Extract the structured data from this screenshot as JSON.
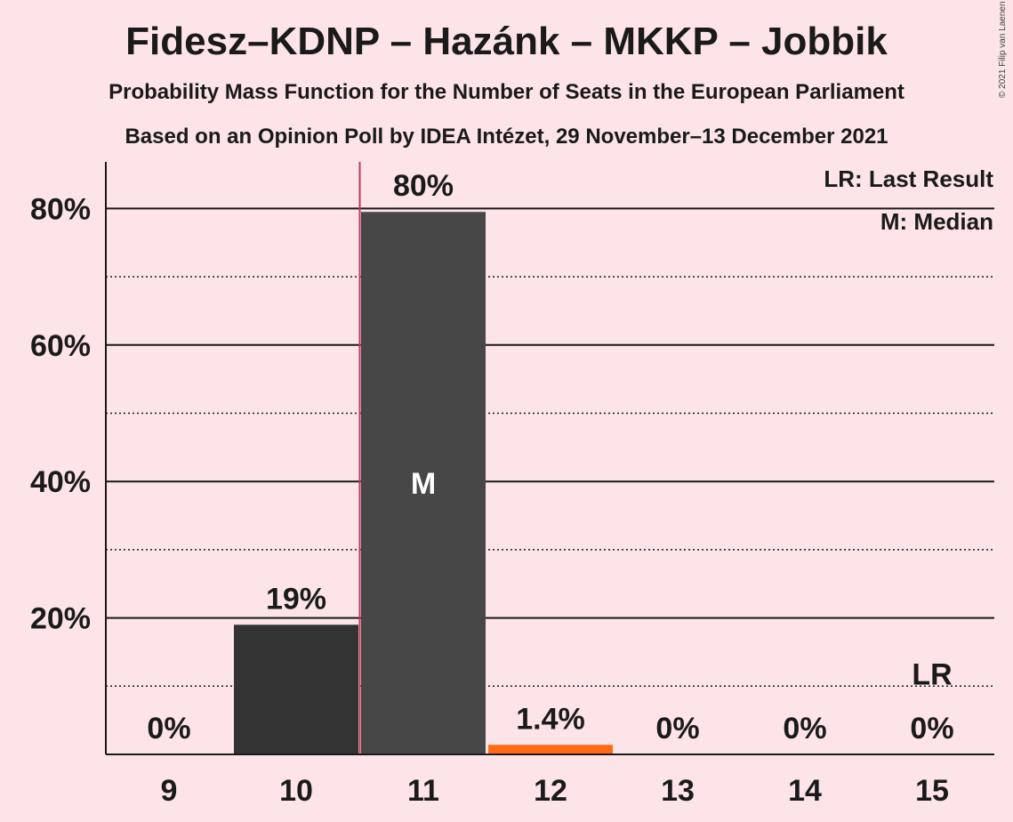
{
  "header": {
    "title": "Fidesz–KDNP – Hazánk – MKKP – Jobbik",
    "subtitle1": "Probability Mass Function for the Number of Seats in the European Parliament",
    "subtitle2": "Based on an Opinion Poll by IDEA Intézet, 29 November–13 December 2021",
    "copyright": "© 2021 Filip van Laenen"
  },
  "legend": {
    "last_result": "LR: Last Result",
    "median": "M: Median"
  },
  "colors": {
    "background": "#FCE4E8",
    "bar_dark": "#333333",
    "bar_median": "#474747",
    "bar_orange": "#FF6A13",
    "median_line": "#C0385A"
  },
  "chart_data": {
    "type": "bar",
    "categories": [
      "9",
      "10",
      "11",
      "12",
      "13",
      "14",
      "15"
    ],
    "values": [
      0,
      19,
      79.5,
      1.4,
      0,
      0,
      0
    ],
    "value_labels": [
      "0%",
      "19%",
      "80%",
      "1.4%",
      "0%",
      "0%",
      "0%"
    ],
    "median_category": "11",
    "median_marker": "M",
    "last_result_category": "15",
    "last_result_marker": "LR",
    "ylim": [
      0,
      87
    ],
    "y_ticks_major": [
      20,
      40,
      60,
      80
    ],
    "y_tick_labels": [
      "20%",
      "40%",
      "60%",
      "80%"
    ],
    "y_ticks_minor": [
      10,
      30,
      50,
      70
    ],
    "xlabel": "",
    "ylabel": ""
  }
}
